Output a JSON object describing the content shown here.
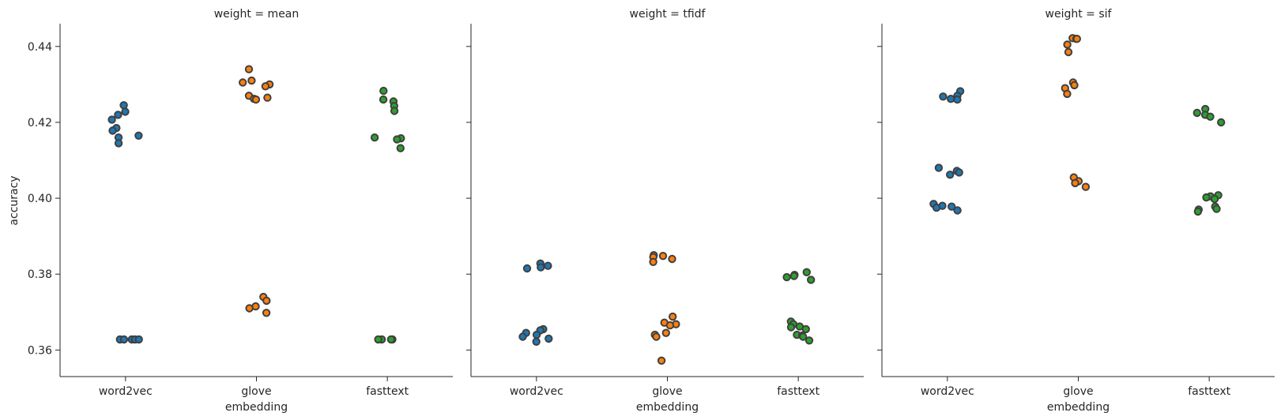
{
  "chart_data": {
    "type": "scatter",
    "subtype": "strip",
    "xlabel": "embedding",
    "ylabel": "accuracy",
    "categories": [
      "word2vec",
      "glove",
      "fasttext"
    ],
    "ylim": [
      0.353,
      0.446
    ],
    "yticks": [
      0.36,
      0.38,
      0.4,
      0.42,
      0.44
    ],
    "ytick_labels": [
      "0.36",
      "0.38",
      "0.40",
      "0.42",
      "0.44"
    ],
    "sharey": true,
    "grid": false,
    "colors": {
      "word2vec": "#1f77b4",
      "glove": "#ff7f0e",
      "fasttext": "#2ca02c",
      "edge": "#404040"
    },
    "panels": [
      {
        "title": "weight = mean",
        "points": {
          "word2vec": [
            0.4245,
            0.4228,
            0.422,
            0.4207,
            0.4185,
            0.4178,
            0.4165,
            0.416,
            0.4145,
            0.3628,
            0.3628,
            0.3628,
            0.3628,
            0.3628
          ],
          "glove": [
            0.434,
            0.431,
            0.4305,
            0.43,
            0.4295,
            0.427,
            0.4265,
            0.4262,
            0.426,
            0.374,
            0.373,
            0.3715,
            0.371,
            0.3698
          ],
          "fasttext": [
            0.4283,
            0.426,
            0.4255,
            0.4243,
            0.423,
            0.416,
            0.4158,
            0.4155,
            0.4132,
            0.3628,
            0.3628,
            0.3628,
            0.3628
          ]
        }
      },
      {
        "title": "weight = tfidf",
        "points": {
          "word2vec": [
            0.3828,
            0.3822,
            0.3818,
            0.3815,
            0.3655,
            0.3652,
            0.3645,
            0.364,
            0.3635,
            0.363,
            0.3622
          ],
          "glove": [
            0.385,
            0.3848,
            0.3845,
            0.384,
            0.3832,
            0.3688,
            0.3672,
            0.3668,
            0.3665,
            0.3645,
            0.364,
            0.3635,
            0.3572
          ],
          "fasttext": [
            0.3805,
            0.3798,
            0.3795,
            0.3792,
            0.3785,
            0.3675,
            0.3668,
            0.3662,
            0.366,
            0.3655,
            0.364,
            0.3638,
            0.3635,
            0.3625
          ]
        }
      },
      {
        "title": "weight = sif",
        "points": {
          "word2vec": [
            0.4282,
            0.427,
            0.4268,
            0.4262,
            0.426,
            0.408,
            0.4072,
            0.4068,
            0.4062,
            0.3985,
            0.398,
            0.3978,
            0.3975,
            0.3968
          ],
          "glove": [
            0.4422,
            0.442,
            0.442,
            0.4405,
            0.4385,
            0.4305,
            0.4298,
            0.429,
            0.4275,
            0.4055,
            0.4045,
            0.404,
            0.403
          ],
          "fasttext": [
            0.4235,
            0.4225,
            0.422,
            0.4215,
            0.42,
            0.4008,
            0.4005,
            0.4002,
            0.3998,
            0.3978,
            0.3972,
            0.397,
            0.3965
          ]
        }
      }
    ]
  }
}
